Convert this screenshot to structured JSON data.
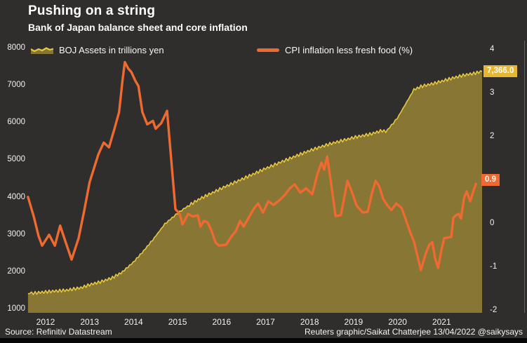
{
  "header": {
    "title": "Pushing on a string",
    "subtitle": "Bank of Japan balance sheet and core inflation"
  },
  "legend": [
    {
      "label": "BOJ Assets in trillions yen",
      "type": "area",
      "edge_color": "#e7c73f",
      "fill_color": "#877634"
    },
    {
      "label": "CPI inflation less fresh food (%)",
      "type": "line",
      "color": "#ee6a31"
    }
  ],
  "badges": [
    {
      "text": "7,366.0",
      "color": "#e7b733",
      "series": "BOJ Assets in trillions yen"
    },
    {
      "text": "0.9",
      "color": "#ee6a31",
      "series": "CPI inflation less fresh food (%)"
    }
  ],
  "footer": {
    "source": "Source: Refinitiv Datastream",
    "credit": "Reuters graphic/Saikat Chatterjee 13/04/2022 @saikysays"
  },
  "colors": {
    "background": "#2f2e2d",
    "area_fill": "#877634",
    "area_edge": "#e7c73f",
    "cpi_line": "#ee6a31",
    "text": "#ffffff",
    "frame_line": "#615f5d",
    "bottom_bar": "#060606"
  },
  "chart_data": {
    "type": "area",
    "title": "Pushing on a string",
    "subtitle": "Bank of Japan balance sheet and core inflation",
    "x_ticks": [
      2012,
      2013,
      2014,
      2015,
      2016,
      2017,
      2018,
      2019,
      2020,
      2021
    ],
    "x_range": [
      2011.6,
      2021.95
    ],
    "left_axis": {
      "series": "BOJ Assets in trillions yen",
      "ticks": [
        1000,
        2000,
        3000,
        4000,
        5000,
        6000,
        7000,
        8000
      ],
      "range": [
        1000,
        8000
      ]
    },
    "right_axis": {
      "series": "CPI inflation less fresh food (%)",
      "ticks": [
        -2,
        -1,
        0,
        1,
        2,
        3,
        4
      ],
      "range": [
        -2,
        4
      ]
    },
    "grid": false,
    "legend_position": "top",
    "series": [
      {
        "name": "BOJ Assets in trillions yen",
        "type": "area",
        "axis": "left",
        "last_value": 7366.0,
        "points": [
          [
            2011.6,
            1400
          ],
          [
            2012.0,
            1450
          ],
          [
            2012.48,
            1495
          ],
          [
            2012.8,
            1560
          ],
          [
            2013.0,
            1640
          ],
          [
            2013.28,
            1730
          ],
          [
            2013.52,
            1830
          ],
          [
            2013.75,
            1990
          ],
          [
            2013.99,
            2240
          ],
          [
            2014.23,
            2550
          ],
          [
            2014.47,
            2900
          ],
          [
            2014.71,
            3270
          ],
          [
            2015.0,
            3560
          ],
          [
            2015.27,
            3780
          ],
          [
            2015.51,
            3950
          ],
          [
            2016.0,
            4230
          ],
          [
            2016.55,
            4520
          ],
          [
            2017.0,
            4760
          ],
          [
            2017.51,
            5010
          ],
          [
            2018.0,
            5240
          ],
          [
            2018.46,
            5420
          ],
          [
            2019.0,
            5590
          ],
          [
            2019.41,
            5690
          ],
          [
            2019.65,
            5780
          ],
          [
            2019.73,
            5740
          ],
          [
            2019.99,
            6100
          ],
          [
            2020.21,
            6550
          ],
          [
            2020.37,
            6870
          ],
          [
            2020.53,
            6960
          ],
          [
            2020.85,
            7050
          ],
          [
            2021.17,
            7160
          ],
          [
            2021.49,
            7260
          ],
          [
            2021.73,
            7310
          ],
          [
            2021.92,
            7366
          ]
        ]
      },
      {
        "name": "CPI inflation less fresh food (%)",
        "type": "line",
        "axis": "right",
        "last_value": 0.9,
        "points": [
          [
            2011.6,
            0.6
          ],
          [
            2011.73,
            0.15
          ],
          [
            2011.84,
            -0.3
          ],
          [
            2011.92,
            -0.52
          ],
          [
            2012.08,
            -0.27
          ],
          [
            2012.21,
            -0.52
          ],
          [
            2012.33,
            -0.06
          ],
          [
            2012.46,
            -0.45
          ],
          [
            2012.59,
            -0.84
          ],
          [
            2012.75,
            -0.35
          ],
          [
            2012.88,
            0.3
          ],
          [
            2013.0,
            0.94
          ],
          [
            2013.2,
            1.58
          ],
          [
            2013.32,
            1.85
          ],
          [
            2013.44,
            1.74
          ],
          [
            2013.56,
            2.15
          ],
          [
            2013.67,
            2.55
          ],
          [
            2013.75,
            3.3
          ],
          [
            2013.8,
            3.7
          ],
          [
            2013.88,
            3.55
          ],
          [
            2013.95,
            3.47
          ],
          [
            2014.04,
            3.27
          ],
          [
            2014.11,
            3.15
          ],
          [
            2014.2,
            2.55
          ],
          [
            2014.31,
            2.27
          ],
          [
            2014.44,
            2.35
          ],
          [
            2014.5,
            2.17
          ],
          [
            2014.63,
            2.3
          ],
          [
            2014.76,
            2.58
          ],
          [
            2014.86,
            1.4
          ],
          [
            2014.95,
            0.32
          ],
          [
            2015.05,
            0.21
          ],
          [
            2015.11,
            -0.03
          ],
          [
            2015.24,
            0.21
          ],
          [
            2015.35,
            0.15
          ],
          [
            2015.46,
            0.18
          ],
          [
            2015.52,
            -0.08
          ],
          [
            2015.6,
            0.05
          ],
          [
            2015.68,
            0.02
          ],
          [
            2015.76,
            -0.15
          ],
          [
            2015.86,
            -0.44
          ],
          [
            2015.94,
            -0.52
          ],
          [
            2016.1,
            -0.5
          ],
          [
            2016.23,
            -0.3
          ],
          [
            2016.32,
            -0.19
          ],
          [
            2016.42,
            0.05
          ],
          [
            2016.5,
            -0.08
          ],
          [
            2016.63,
            0.15
          ],
          [
            2016.74,
            0.34
          ],
          [
            2016.83,
            0.45
          ],
          [
            2016.94,
            0.24
          ],
          [
            2017.06,
            0.5
          ],
          [
            2017.18,
            0.42
          ],
          [
            2017.31,
            0.52
          ],
          [
            2017.44,
            0.65
          ],
          [
            2017.55,
            0.8
          ],
          [
            2017.66,
            0.89
          ],
          [
            2017.79,
            0.7
          ],
          [
            2017.92,
            0.8
          ],
          [
            2018.06,
            0.66
          ],
          [
            2018.17,
            1.1
          ],
          [
            2018.27,
            1.39
          ],
          [
            2018.33,
            1.23
          ],
          [
            2018.4,
            1.53
          ],
          [
            2018.49,
            0.9
          ],
          [
            2018.59,
            0.16
          ],
          [
            2018.71,
            0.18
          ],
          [
            2018.86,
            0.97
          ],
          [
            2018.95,
            0.74
          ],
          [
            2019.07,
            0.4
          ],
          [
            2019.21,
            0.24
          ],
          [
            2019.32,
            0.26
          ],
          [
            2019.42,
            0.7
          ],
          [
            2019.5,
            0.97
          ],
          [
            2019.58,
            0.85
          ],
          [
            2019.67,
            0.56
          ],
          [
            2019.77,
            0.4
          ],
          [
            2019.86,
            0.3
          ],
          [
            2019.97,
            0.45
          ],
          [
            2020.09,
            0.35
          ],
          [
            2020.18,
            0.1
          ],
          [
            2020.28,
            -0.2
          ],
          [
            2020.37,
            -0.42
          ],
          [
            2020.45,
            -0.75
          ],
          [
            2020.53,
            -1.08
          ],
          [
            2020.64,
            -0.7
          ],
          [
            2020.72,
            -0.5
          ],
          [
            2020.79,
            -0.44
          ],
          [
            2020.85,
            -0.8
          ],
          [
            2020.92,
            -1.03
          ],
          [
            2021.0,
            -0.6
          ],
          [
            2021.06,
            -0.35
          ],
          [
            2021.16,
            -0.33
          ],
          [
            2021.22,
            -0.32
          ],
          [
            2021.27,
            0.13
          ],
          [
            2021.33,
            0.18
          ],
          [
            2021.39,
            0.21
          ],
          [
            2021.44,
            0.1
          ],
          [
            2021.51,
            0.58
          ],
          [
            2021.57,
            0.73
          ],
          [
            2021.65,
            0.5
          ],
          [
            2021.71,
            0.7
          ],
          [
            2021.78,
            0.9
          ]
        ]
      }
    ]
  }
}
